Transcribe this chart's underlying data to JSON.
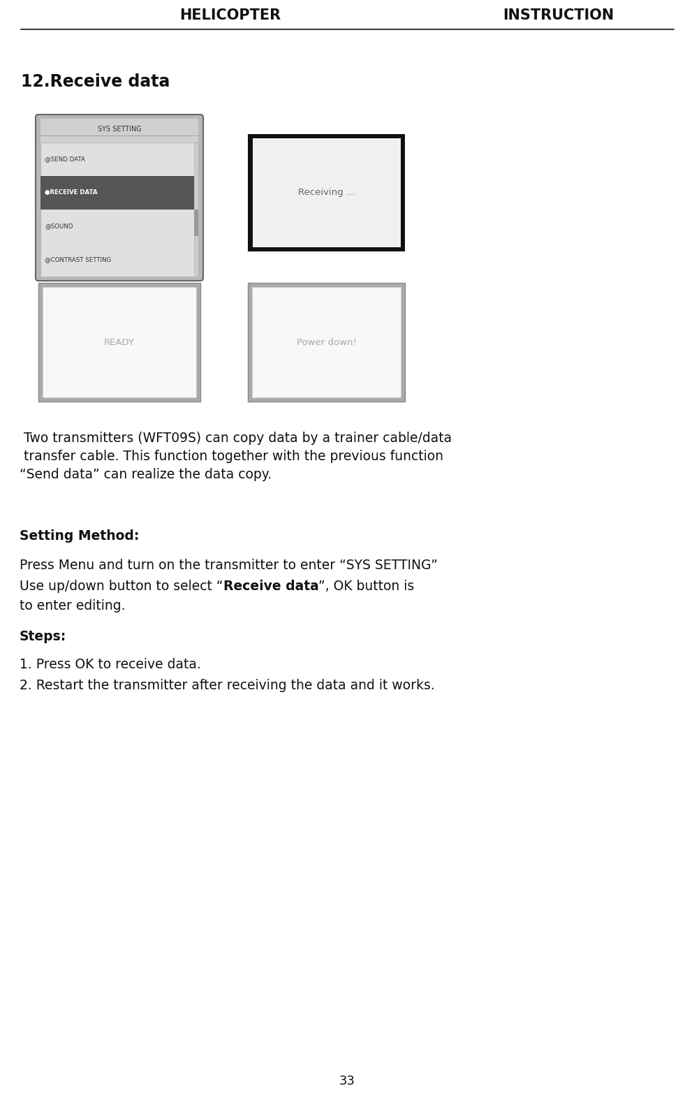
{
  "bg_color": "#ffffff",
  "header_left": "HELICOPTER",
  "header_right": "INSTRUCTION",
  "header_fontsize": 15,
  "title": "12.Receive data",
  "title_fontsize": 17,
  "screen2_text": "Receiving ...",
  "screen3_text": "READY",
  "screen4_text": "Power down!",
  "setting_header": "Setting Method:",
  "setting_body_line1": "Press Menu and turn on the transmitter to enter “SYS SETTING”",
  "setting_body_line2_pre": "Use up/down button to select “",
  "setting_body_line2_bold": "Receive data",
  "setting_body_line2_post": "”, OK button is",
  "setting_body_line3": "to enter editing.",
  "steps_header": "Steps:",
  "step1": "1. Press OK to receive data.",
  "step2": "2. Restart the transmitter after receiving the data and it works.",
  "desc_line1": " Two transmitters (WFT09S) can copy data by a trainer cable/data",
  "desc_line2": " transfer cable. This function together with the previous function",
  "desc_line3": "“Send data” can realize the data copy.",
  "page_num": "33",
  "font_size_body": 13.5,
  "menu_items": [
    "@SEND DATA",
    "●RECEIVE DATA",
    "@SOUND",
    "@CONTRAST SETTING"
  ],
  "menu_highlight_idx": 1
}
